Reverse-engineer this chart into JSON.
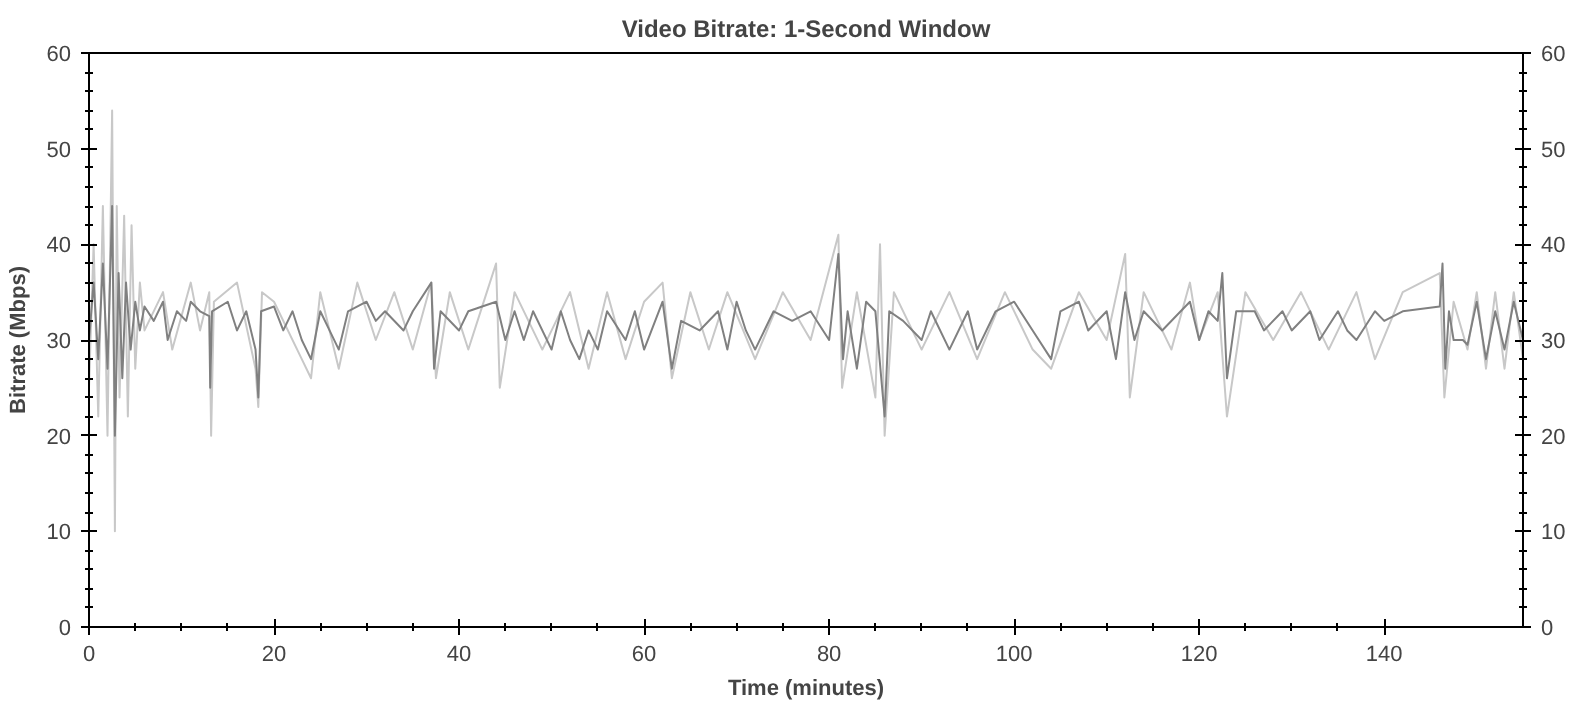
{
  "chart_data": {
    "type": "line",
    "title": "Video Bitrate: 1-Second Window",
    "xlabel": "Time (minutes)",
    "ylabel": "Bitrate (Mbps)",
    "xlim": [
      0,
      155
    ],
    "xticks": [
      0,
      20,
      40,
      60,
      80,
      100,
      120,
      140
    ],
    "ylim": [
      0,
      60
    ],
    "yticks": [
      0,
      10,
      20,
      30,
      40,
      50,
      60
    ],
    "y2lim": [
      0,
      60
    ],
    "y2ticks": [
      0,
      10,
      20,
      30,
      40,
      50,
      60
    ],
    "grid": false,
    "marker": "none",
    "line_style": "solid",
    "series": [
      {
        "color": "#c8c8c8",
        "x": [
          0,
          0.5,
          1,
          1.5,
          2,
          2.5,
          2.8,
          3,
          3.3,
          3.8,
          4.2,
          4.6,
          5,
          5.5,
          6,
          8,
          9,
          11,
          12,
          13,
          13.2,
          13.5,
          16,
          18,
          18.3,
          18.7,
          20,
          23,
          24,
          25,
          27,
          29,
          31,
          33,
          35,
          37,
          37.5,
          39,
          41,
          43,
          44,
          44.4,
          46,
          49,
          52,
          54,
          56,
          58,
          60,
          62,
          63,
          65,
          67,
          69,
          72,
          75,
          78,
          81,
          81.4,
          83,
          85,
          85.5,
          86,
          87,
          90,
          93,
          96,
          99,
          102,
          104,
          107,
          110,
          112,
          112.5,
          114,
          117,
          119,
          120,
          122,
          123,
          125,
          128,
          131,
          134,
          137,
          139,
          142,
          146,
          146.5,
          147.5,
          149,
          150,
          151,
          152,
          153,
          154,
          155
        ],
        "values": [
          25,
          40,
          22,
          44,
          20,
          54,
          10,
          44,
          24,
          43,
          22,
          42,
          27,
          36,
          31,
          35,
          29,
          36,
          31,
          35,
          20,
          34,
          36,
          27,
          23,
          35,
          34,
          28,
          26,
          35,
          27,
          36,
          30,
          35,
          29,
          36,
          26,
          35,
          29,
          35,
          38,
          25,
          35,
          29,
          35,
          27,
          35,
          28,
          34,
          36,
          26,
          35,
          29,
          35,
          28,
          35,
          30,
          41,
          25,
          35,
          24,
          40,
          20,
          35,
          29,
          35,
          28,
          35,
          29,
          27,
          35,
          30,
          39,
          24,
          35,
          29,
          36,
          30,
          35,
          22,
          35,
          30,
          35,
          29,
          35,
          28,
          35,
          37,
          24,
          34,
          29,
          35,
          27,
          35,
          27,
          35,
          28
        ]
      },
      {
        "color": "#808080",
        "x": [
          0,
          0.5,
          1,
          1.5,
          2,
          2.5,
          2.8,
          3.2,
          3.6,
          4,
          4.5,
          5,
          5.5,
          6,
          7,
          8,
          8.5,
          9.5,
          10.5,
          11,
          12,
          13,
          13.1,
          13.3,
          15,
          16,
          17,
          18,
          18.3,
          18.6,
          20,
          21,
          22,
          23,
          24,
          25,
          26,
          27,
          28,
          30,
          31,
          32,
          34,
          35,
          37,
          37.3,
          38,
          40,
          41,
          44,
          45,
          46,
          47,
          48,
          50,
          51,
          52,
          53,
          54,
          55,
          56,
          58,
          59,
          60,
          62,
          63,
          64,
          66,
          68,
          69,
          70,
          71,
          72,
          74,
          76,
          78,
          80,
          81,
          81.5,
          82,
          83,
          84,
          85,
          86,
          86.5,
          88,
          90,
          91,
          93,
          95,
          96,
          98,
          100,
          102,
          104,
          105,
          107,
          108,
          110,
          111,
          112,
          113,
          114,
          116,
          118,
          119,
          120,
          121,
          122,
          122.5,
          123,
          124,
          126,
          127,
          129,
          130,
          132,
          133,
          135,
          136,
          137,
          139,
          140,
          142,
          146,
          146.3,
          146.6,
          147,
          147.5,
          148.5,
          149,
          150,
          151,
          152,
          153,
          154,
          155
        ],
        "values": [
          30,
          36,
          28,
          38,
          27,
          44,
          20,
          37,
          26,
          36,
          29,
          34,
          31,
          33.5,
          32,
          34,
          30,
          33,
          32,
          34,
          33,
          32.5,
          25,
          33,
          34,
          31,
          33,
          29,
          24,
          33,
          33.5,
          31,
          33,
          30,
          28,
          33,
          31,
          29,
          33,
          34,
          32,
          33,
          31,
          33,
          36,
          27,
          33,
          31,
          33,
          34,
          30,
          33,
          30,
          33,
          29,
          33,
          30,
          28,
          31,
          29,
          33,
          30,
          33,
          29,
          34,
          27,
          32,
          31,
          33,
          29,
          34,
          31,
          29,
          33,
          32,
          33,
          30,
          39,
          28,
          33,
          27,
          34,
          33,
          22,
          33,
          32,
          30,
          33,
          29,
          33,
          29,
          33,
          34,
          31,
          28,
          33,
          34,
          31,
          33,
          28,
          35,
          30,
          33,
          31,
          33,
          34,
          30,
          33,
          32,
          37,
          26,
          33,
          33,
          31,
          33,
          31,
          33,
          30,
          33,
          31,
          30,
          33,
          32,
          33,
          33.5,
          38,
          27,
          33,
          30,
          30,
          29.5,
          34,
          28,
          33,
          29,
          34,
          30
        ]
      }
    ]
  }
}
